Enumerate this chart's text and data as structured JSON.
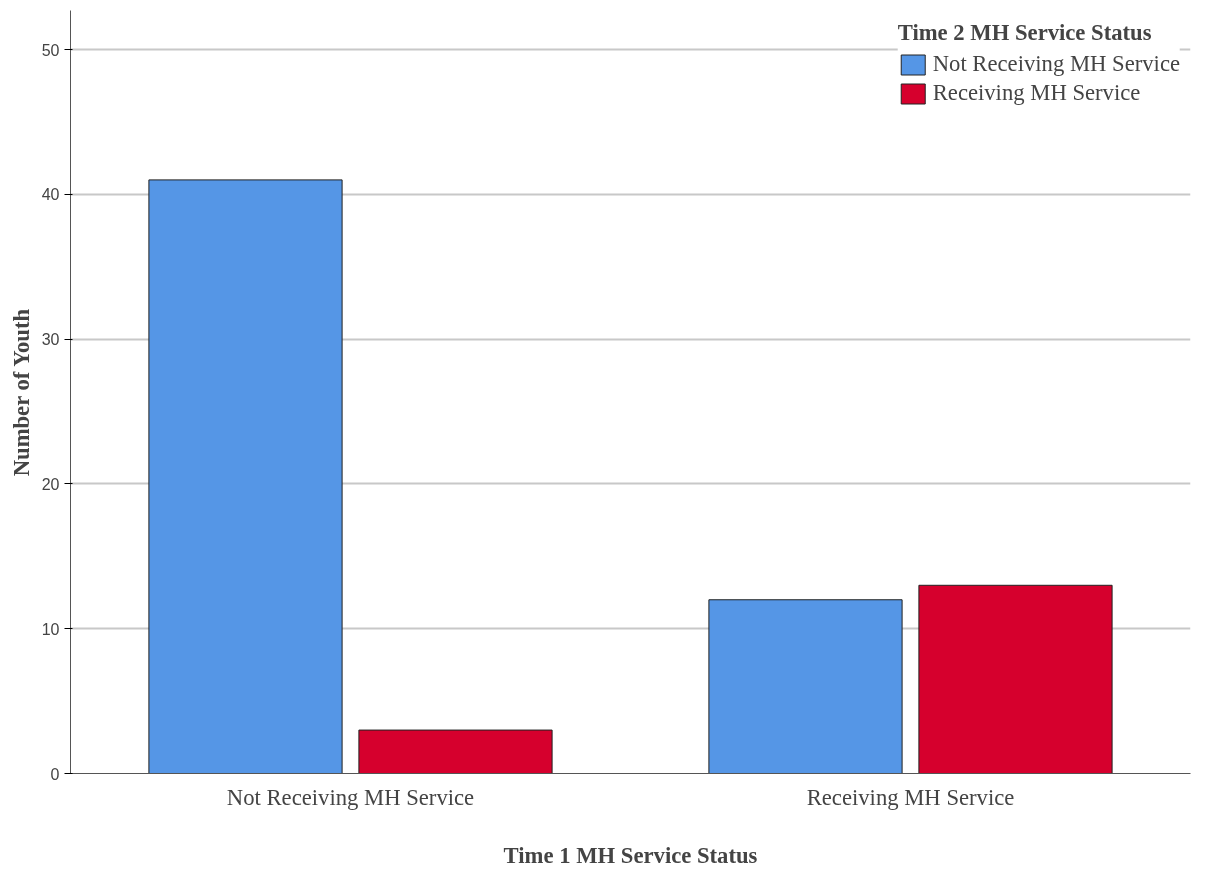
{
  "chart_data": {
    "type": "bar",
    "xlabel": "Time 1 MH Service Status",
    "ylabel": "Number of Youth",
    "legend_title": "Time 2 MH Service Status",
    "categories": [
      "Not Receiving MH Service",
      "Receiving MH Service"
    ],
    "series": [
      {
        "name": "Not Receiving MH Service",
        "color": "#5596e6",
        "values": [
          41,
          12
        ]
      },
      {
        "name": "Receiving MH Service",
        "color": "#d6002d",
        "values": [
          3,
          13
        ]
      }
    ],
    "ylim": [
      0,
      52.7
    ],
    "yticks": [
      0,
      10,
      20,
      30,
      40,
      50
    ],
    "grid": "y",
    "legend": "top right"
  }
}
